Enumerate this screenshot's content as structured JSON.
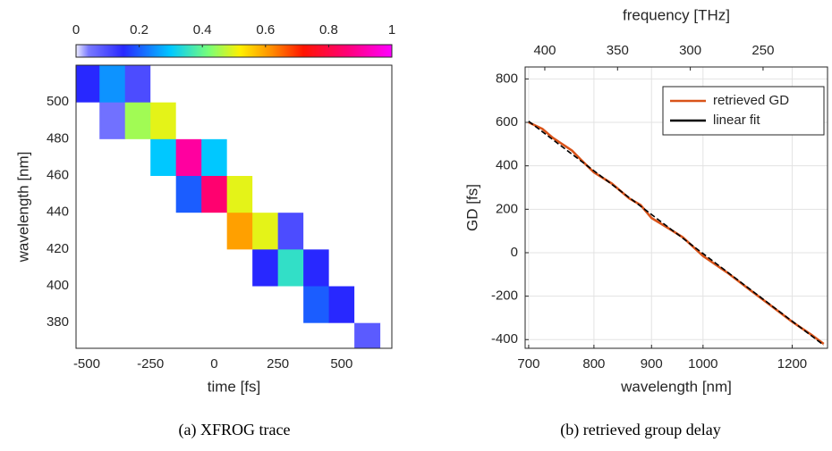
{
  "chart_data": [
    {
      "type": "heatmap",
      "caption": "(a) XFROG trace",
      "xlabel": "time [fs]",
      "ylabel": "wavelength [nm]",
      "x": [
        -500,
        -400,
        -300,
        -200,
        -100,
        0,
        100,
        200,
        300,
        400,
        500,
        600
      ],
      "y": [
        370,
        390,
        410,
        430,
        450,
        470,
        490,
        510
      ],
      "values": [
        [
          0,
          0,
          0,
          0,
          0,
          0,
          0,
          0,
          0,
          0,
          0,
          0.08
        ],
        [
          0,
          0,
          0,
          0,
          0,
          0,
          0,
          0,
          0,
          0.2,
          0.15,
          0
        ],
        [
          0,
          0,
          0,
          0,
          0,
          0,
          0,
          0.15,
          0.35,
          0.15,
          0,
          0
        ],
        [
          0,
          0,
          0,
          0,
          0,
          0,
          0.6,
          0.5,
          0.1,
          0,
          0,
          0
        ],
        [
          0,
          0,
          0,
          0,
          0.2,
          0.85,
          0.5,
          0,
          0,
          0,
          0,
          0
        ],
        [
          0,
          0,
          0,
          0.3,
          0.9,
          0.3,
          0,
          0,
          0,
          0,
          0,
          0
        ],
        [
          0,
          0.05,
          0.45,
          0.5,
          0,
          0,
          0,
          0,
          0,
          0,
          0,
          0
        ],
        [
          0.15,
          0.25,
          0.1,
          0,
          0,
          0,
          0,
          0,
          0,
          0,
          0,
          0
        ]
      ],
      "xlim": [
        -542,
        697
      ],
      "ylim": [
        366,
        520
      ],
      "xticks": [
        -500,
        -250,
        0,
        250,
        500
      ],
      "yticks": [
        380,
        400,
        420,
        440,
        460,
        480,
        500
      ],
      "colorbar_lim": [
        0,
        1
      ],
      "colorbar_ticks": [
        0,
        0.2,
        0.4,
        0.6,
        0.8,
        1
      ]
    },
    {
      "type": "line",
      "caption": "(b) retrieved group delay",
      "xlabel": "wavelength [nm]",
      "ylabel": "GD [fs]",
      "x2label": "frequency [THz]",
      "xscale": "log",
      "xlim": [
        695,
        1290
      ],
      "xticks": [
        700,
        800,
        900,
        1000,
        1200
      ],
      "x2lim": [
        413.5,
        205.7
      ],
      "x2ticks": [
        400,
        350,
        300,
        250
      ],
      "ylim": [
        -440,
        855
      ],
      "yticks": [
        -400,
        -200,
        0,
        200,
        400,
        600,
        800
      ],
      "grid": true,
      "legend": "northeast",
      "series": [
        {
          "name": "retrieved GD",
          "color": "#d95319",
          "x": [
            700,
            720,
            735,
            750,
            765,
            780,
            800,
            830,
            860,
            880,
            900,
            930,
            960,
            1000,
            1050,
            1100,
            1150,
            1200,
            1250,
            1280
          ],
          "values": [
            600,
            570,
            530,
            500,
            470,
            425,
            370,
            318,
            250,
            220,
            160,
            115,
            70,
            -15,
            -90,
            -170,
            -245,
            -318,
            -380,
            -420
          ]
        },
        {
          "name": "linear fit",
          "color": "#000000",
          "x": [
            700,
            1280
          ],
          "values": [
            605,
            -425
          ]
        }
      ]
    }
  ]
}
